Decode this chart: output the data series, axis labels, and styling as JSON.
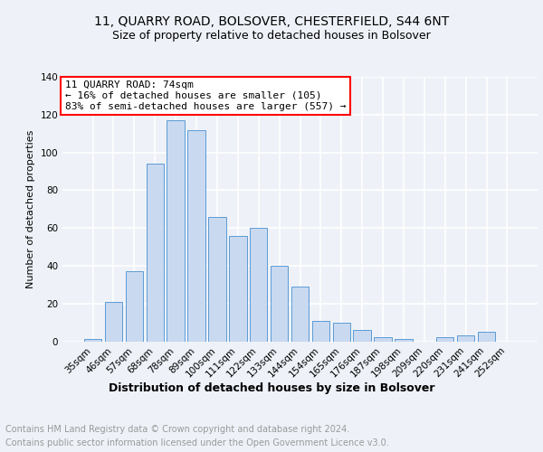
{
  "title1": "11, QUARRY ROAD, BOLSOVER, CHESTERFIELD, S44 6NT",
  "title2": "Size of property relative to detached houses in Bolsover",
  "xlabel": "Distribution of detached houses by size in Bolsover",
  "ylabel": "Number of detached properties",
  "categories": [
    "35sqm",
    "46sqm",
    "57sqm",
    "68sqm",
    "78sqm",
    "89sqm",
    "100sqm",
    "111sqm",
    "122sqm",
    "133sqm",
    "144sqm",
    "154sqm",
    "165sqm",
    "176sqm",
    "187sqm",
    "198sqm",
    "209sqm",
    "220sqm",
    "231sqm",
    "241sqm",
    "252sqm"
  ],
  "values": [
    1,
    21,
    37,
    94,
    117,
    112,
    66,
    56,
    60,
    40,
    29,
    11,
    10,
    6,
    2,
    1,
    0,
    2,
    3,
    5,
    0
  ],
  "bar_color": "#c9d9f0",
  "bar_edge_color": "#5b9bd5",
  "annotation_line1": "11 QUARRY ROAD: 74sqm",
  "annotation_line2": "← 16% of detached houses are smaller (105)",
  "annotation_line3": "83% of semi-detached houses are larger (557) →",
  "annotation_box_color": "white",
  "annotation_box_edge": "red",
  "ylim": [
    0,
    140
  ],
  "yticks": [
    0,
    20,
    40,
    60,
    80,
    100,
    120,
    140
  ],
  "bg_color": "#eef2f8",
  "plot_bg": "#eef2f8",
  "footer1": "Contains HM Land Registry data © Crown copyright and database right 2024.",
  "footer2": "Contains public sector information licensed under the Open Government Licence v3.0.",
  "footer_color": "#999999",
  "grid_color": "white",
  "title1_fontsize": 10,
  "title2_fontsize": 9,
  "xlabel_fontsize": 9,
  "ylabel_fontsize": 8,
  "tick_fontsize": 7.5,
  "annot_fontsize": 8
}
